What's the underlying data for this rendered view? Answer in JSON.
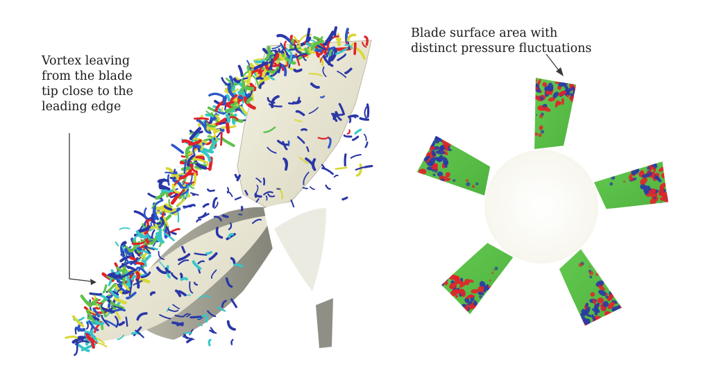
{
  "figure": {
    "left_panel": {
      "annotation_lines": [
        "Vortex leaving",
        "from the blade",
        "tip close to the",
        "leading edge"
      ]
    },
    "right_panel": {
      "annotation_lines": [
        "Blade surface area with",
        "distinct pressure fluctuations"
      ],
      "blade_count": 5
    },
    "colors": {
      "background": "#ffffff",
      "blade_surface_cream": "#efecd8",
      "blade_shadow_gray": "#9a9a8e",
      "pressure_base_green": "#5cc24a",
      "fluctuation_red": "#e0242a",
      "fluctuation_blue": "#2a37a6",
      "vortex_cyan": "#37c6c8",
      "vortex_yellow": "#d8d83a",
      "leader_line": "#3a3a3a"
    }
  }
}
